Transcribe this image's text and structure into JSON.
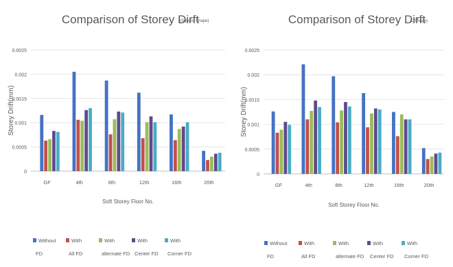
{
  "chart_data": [
    {
      "type": "bar",
      "title": "Comparison of Storey Dirft",
      "subtitle": "(Square Shape)",
      "xlabel": "Soft Storey Floor No.",
      "ylabel": "Storey Drift(mm)",
      "categories": [
        "GF",
        "4th",
        "8th",
        "12th",
        "16th",
        "20th"
      ],
      "ylim": [
        0,
        0.0025
      ],
      "yticks": [
        "0",
        "0.0005",
        "0.001",
        "0.0015",
        "0.002",
        "0.0025"
      ],
      "grid": true,
      "legend_position": "bottom",
      "series": [
        {
          "name": "Without FD",
          "color": "#4472C4",
          "values": [
            0.00116,
            0.00205,
            0.00187,
            0.00162,
            0.00117,
            0.00042
          ]
        },
        {
          "name": "With All FD",
          "color": "#C0504D",
          "values": [
            0.00063,
            0.00106,
            0.00076,
            0.00068,
            0.00064,
            0.00023
          ]
        },
        {
          "name": "With alternate FD",
          "color": "#9BBB59",
          "values": [
            0.00066,
            0.00104,
            0.00107,
            0.00101,
            0.00087,
            0.0003
          ]
        },
        {
          "name": "With Center FD",
          "color": "#5F4B8B",
          "values": [
            0.00083,
            0.00126,
            0.00123,
            0.00113,
            0.00092,
            0.00036
          ]
        },
        {
          "name": "With Corner FD",
          "color": "#4BACC6",
          "values": [
            0.00081,
            0.0013,
            0.00121,
            0.00101,
            0.00101,
            0.00038
          ]
        }
      ]
    },
    {
      "type": "bar",
      "title": "Comparison of Storey Dirft",
      "subtitle": "(L Shape)",
      "xlabel": "Soft Storey Floor No.",
      "ylabel": "Storey Drift(mm)",
      "categories": [
        "GF",
        "4th",
        "8th",
        "12th",
        "16th",
        "20th"
      ],
      "ylim": [
        0,
        0.0025
      ],
      "yticks": [
        "0",
        "0.0005",
        "0.001",
        "0.0015",
        "0.002",
        "0.0025"
      ],
      "grid": true,
      "legend_position": "bottom",
      "series": [
        {
          "name": "Without FD",
          "color": "#4472C4",
          "values": [
            0.00126,
            0.00221,
            0.00197,
            0.00163,
            0.00125,
            0.00052
          ]
        },
        {
          "name": "With All FD",
          "color": "#C0504D",
          "values": [
            0.00083,
            0.0011,
            0.00104,
            0.00094,
            0.00076,
            0.0003
          ]
        },
        {
          "name": "With alternate FD",
          "color": "#9BBB59",
          "values": [
            0.00089,
            0.00127,
            0.00128,
            0.00122,
            0.0012,
            0.00035
          ]
        },
        {
          "name": "With Center FD",
          "color": "#5F4B8B",
          "values": [
            0.00105,
            0.00148,
            0.00145,
            0.00132,
            0.0011,
            0.00041
          ]
        },
        {
          "name": "With Corner FD",
          "color": "#4BACC6",
          "values": [
            0.00099,
            0.00135,
            0.00136,
            0.0013,
            0.0011,
            0.00043
          ]
        }
      ]
    }
  ]
}
